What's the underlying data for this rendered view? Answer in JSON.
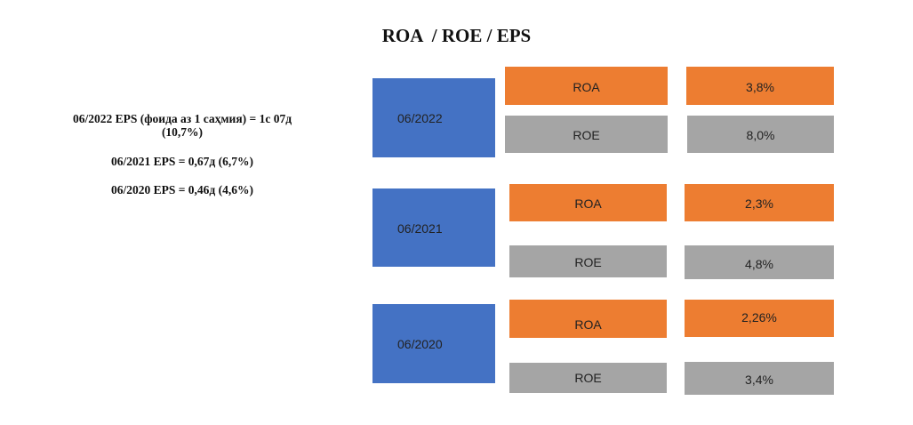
{
  "title": "ROA  / ROE / EPS",
  "eps_notes": [
    {
      "line1": "06/2022 EPS (фоида аз 1 саҳмия) = 1с 07д",
      "line2": "(10,7%)"
    },
    {
      "line1": "06/2021 EPS = 0,67д (6,7%)"
    },
    {
      "line1": "06/2020 EPS = 0,46д (4,6%)"
    }
  ],
  "colors": {
    "year_box": "#4472C4",
    "roa_box": "#ED7D31",
    "roe_box": "#A5A5A5"
  },
  "periods": [
    {
      "year": "06/2022",
      "roa_label": "ROA",
      "roa_value": "3,8%",
      "roe_label": "ROE",
      "roe_value": "8,0%"
    },
    {
      "year": "06/2021",
      "roa_label": "ROA",
      "roa_value": "2,3%",
      "roe_label": "ROE",
      "roe_value": "4,8%"
    },
    {
      "year": "06/2020",
      "roa_label": "ROA",
      "roa_value": "2,26%",
      "roe_label": "ROE",
      "roe_value": "3,4%"
    }
  ]
}
